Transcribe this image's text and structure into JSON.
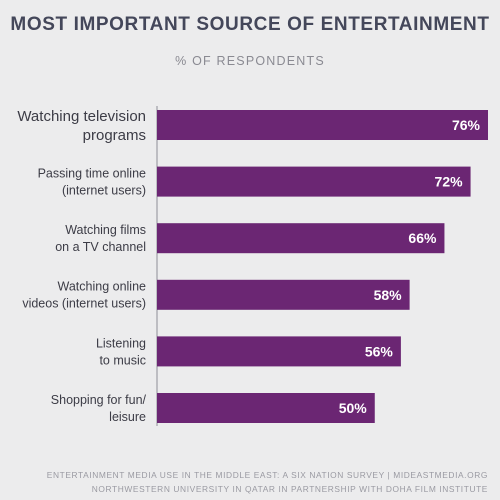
{
  "title": "MOST IMPORTANT SOURCE OF ENTERTAINMENT",
  "subtitle": "% OF RESPONDENTS",
  "footer": {
    "line1": "ENTERTAINMENT MEDIA USE IN THE MIDDLE EAST: A SIX NATION SURVEY | MIDEASTMEDIA.ORG",
    "line2": "NORTHWESTERN UNIVERSITY IN QATAR IN PARTNERSHIP WITH DOHA FILM INSTITUTE"
  },
  "colors": {
    "bar": "#6b2673",
    "axis": "#8e8e96"
  },
  "chart_data": {
    "type": "bar",
    "orientation": "horizontal",
    "categories": [
      [
        "Watching television",
        "programs"
      ],
      [
        "Passing time online",
        "(internet users)"
      ],
      [
        "Watching films",
        "on a TV channel"
      ],
      [
        "Watching online",
        "videos (internet users)"
      ],
      [
        "Listening",
        "to music"
      ],
      [
        "Shopping for fun/",
        "leisure"
      ]
    ],
    "values": [
      76,
      72,
      66,
      58,
      56,
      50
    ],
    "value_labels": [
      "76%",
      "72%",
      "66%",
      "58%",
      "56%",
      "50%"
    ],
    "unit": "%",
    "xlim": [
      0,
      76
    ]
  }
}
